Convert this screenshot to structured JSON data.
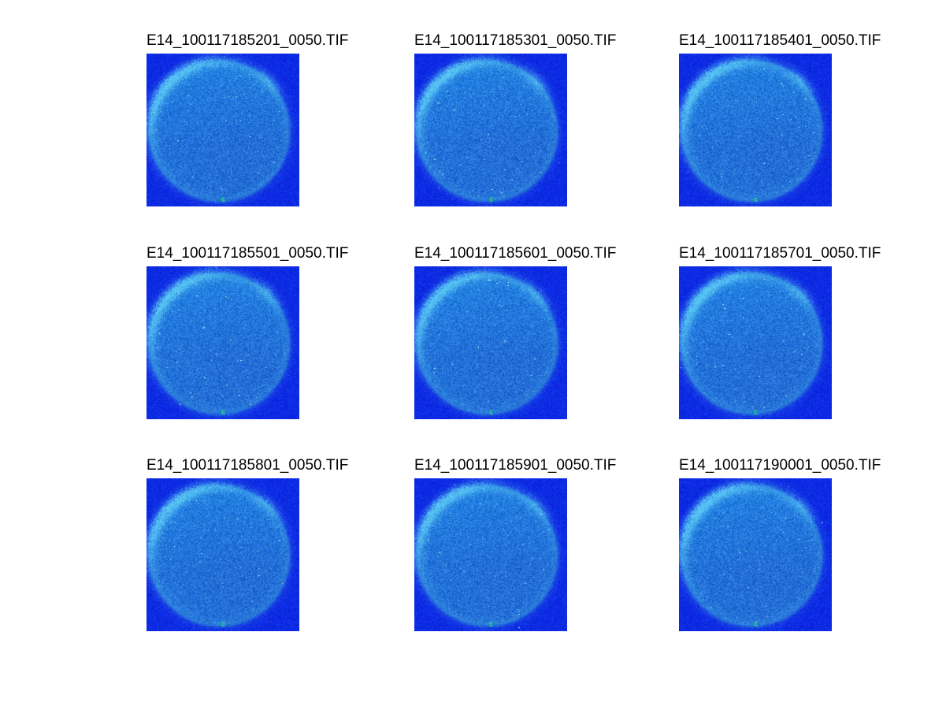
{
  "figure": {
    "page_background": "#ffffff",
    "title_color": "#000000",
    "grid": {
      "rows": 3,
      "cols": 3
    },
    "panels": [
      {
        "label": "E14_100117185201_0050.TIF"
      },
      {
        "label": "E14_100117185301_0050.TIF"
      },
      {
        "label": "E14_100117185401_0050.TIF"
      },
      {
        "label": "E14_100117185501_0050.TIF"
      },
      {
        "label": "E14_100117185601_0050.TIF"
      },
      {
        "label": "E14_100117185701_0050.TIF"
      },
      {
        "label": "E14_100117185801_0050.TIF"
      },
      {
        "label": "E14_100117185901_0050.TIF"
      },
      {
        "label": "E14_100117190001_0050.TIF"
      }
    ],
    "palette": {
      "image_background": "#0a28e6",
      "disk": "#236ed7",
      "rim_highlight": "#5ac8f5",
      "speckle": "#d2ffff",
      "marker_dot": "#28dc82"
    }
  }
}
